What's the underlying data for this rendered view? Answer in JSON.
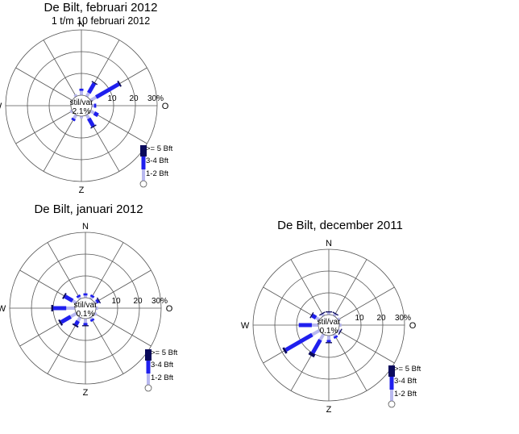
{
  "colors": {
    "weak": "#b8b8ef",
    "moderate": "#1f1fee",
    "strong": "#0a0a5c",
    "grid": "#555555",
    "background": "#ffffff"
  },
  "chart_data": [
    {
      "type": "wind-rose",
      "title": "De Bilt, februari 2012",
      "subtitle": "1 t/m 10 februari 2012",
      "calm_label": "stil/var",
      "calm_value": "2.1%",
      "compass": [
        "N",
        "O",
        "Z",
        "W"
      ],
      "ring_labels": [
        "10",
        "20",
        "30%"
      ],
      "legend": [
        ">= 5 Bft",
        "3-4 Bft",
        "1-2 Bft"
      ],
      "directions_deg": [
        0,
        30,
        60,
        90,
        120,
        150,
        180,
        210,
        240,
        270,
        300,
        330
      ],
      "series": [
        {
          "name": "1-2 Bft",
          "values": [
            2,
            2,
            3,
            1,
            2,
            2,
            1,
            2,
            1,
            0,
            0,
            1
          ]
        },
        {
          "name": "3-4 Bft",
          "values": [
            1,
            5,
            12,
            1,
            2,
            4,
            0,
            1,
            0,
            0,
            0,
            0
          ]
        },
        {
          "name": ">= 5 Bft",
          "values": [
            0,
            0.5,
            0.7,
            0,
            0,
            0.5,
            0,
            0,
            0,
            0,
            0,
            0
          ]
        }
      ]
    },
    {
      "type": "wind-rose",
      "title": "De Bilt, januari 2012",
      "subtitle": "",
      "calm_label": "stil/var",
      "calm_value": "0.1%",
      "compass": [
        "N",
        "O",
        "Z",
        "W"
      ],
      "ring_labels": [
        "10",
        "20",
        "30%"
      ],
      "legend": [
        ">= 5 Bft",
        "3-4 Bft",
        "1-2 Bft"
      ],
      "directions_deg": [
        0,
        30,
        60,
        90,
        120,
        150,
        180,
        210,
        240,
        270,
        300,
        330
      ],
      "series": [
        {
          "name": "1-2 Bft",
          "values": [
            1,
            1,
            1,
            1,
            1,
            1,
            2,
            2,
            3,
            4,
            2,
            1
          ]
        },
        {
          "name": "3-4 Bft",
          "values": [
            1,
            1,
            1,
            0,
            0,
            1,
            1,
            2,
            5,
            6,
            4,
            1
          ]
        },
        {
          "name": ">= 5 Bft",
          "values": [
            0,
            0,
            0.5,
            0,
            0,
            0,
            0.5,
            0.7,
            0.8,
            0.9,
            0.7,
            0
          ]
        }
      ]
    },
    {
      "type": "wind-rose",
      "title": "De Bilt, december 2011",
      "subtitle": "",
      "calm_label": "stil/var",
      "calm_value": "0.1%",
      "compass": [
        "N",
        "O",
        "Z",
        "W"
      ],
      "ring_labels": [
        "10",
        "20",
        "30%"
      ],
      "legend": [
        ">= 5 Bft",
        "3-4 Bft",
        "1-2 Bft"
      ],
      "directions_deg": [
        0,
        30,
        60,
        90,
        120,
        150,
        180,
        210,
        240,
        270,
        300,
        330
      ],
      "series": [
        {
          "name": "1-2 Bft",
          "values": [
            1,
            1,
            1,
            1,
            1,
            1,
            2,
            3,
            4,
            3,
            2,
            1
          ]
        },
        {
          "name": "3-4 Bft",
          "values": [
            0,
            0,
            0,
            0,
            0,
            1,
            1,
            7,
            14,
            6,
            2,
            0
          ]
        },
        {
          "name": ">= 5 Bft",
          "values": [
            0.5,
            0.5,
            0,
            0,
            0.5,
            0,
            0.5,
            1.5,
            1,
            0,
            0.5,
            0.5
          ]
        }
      ]
    }
  ]
}
